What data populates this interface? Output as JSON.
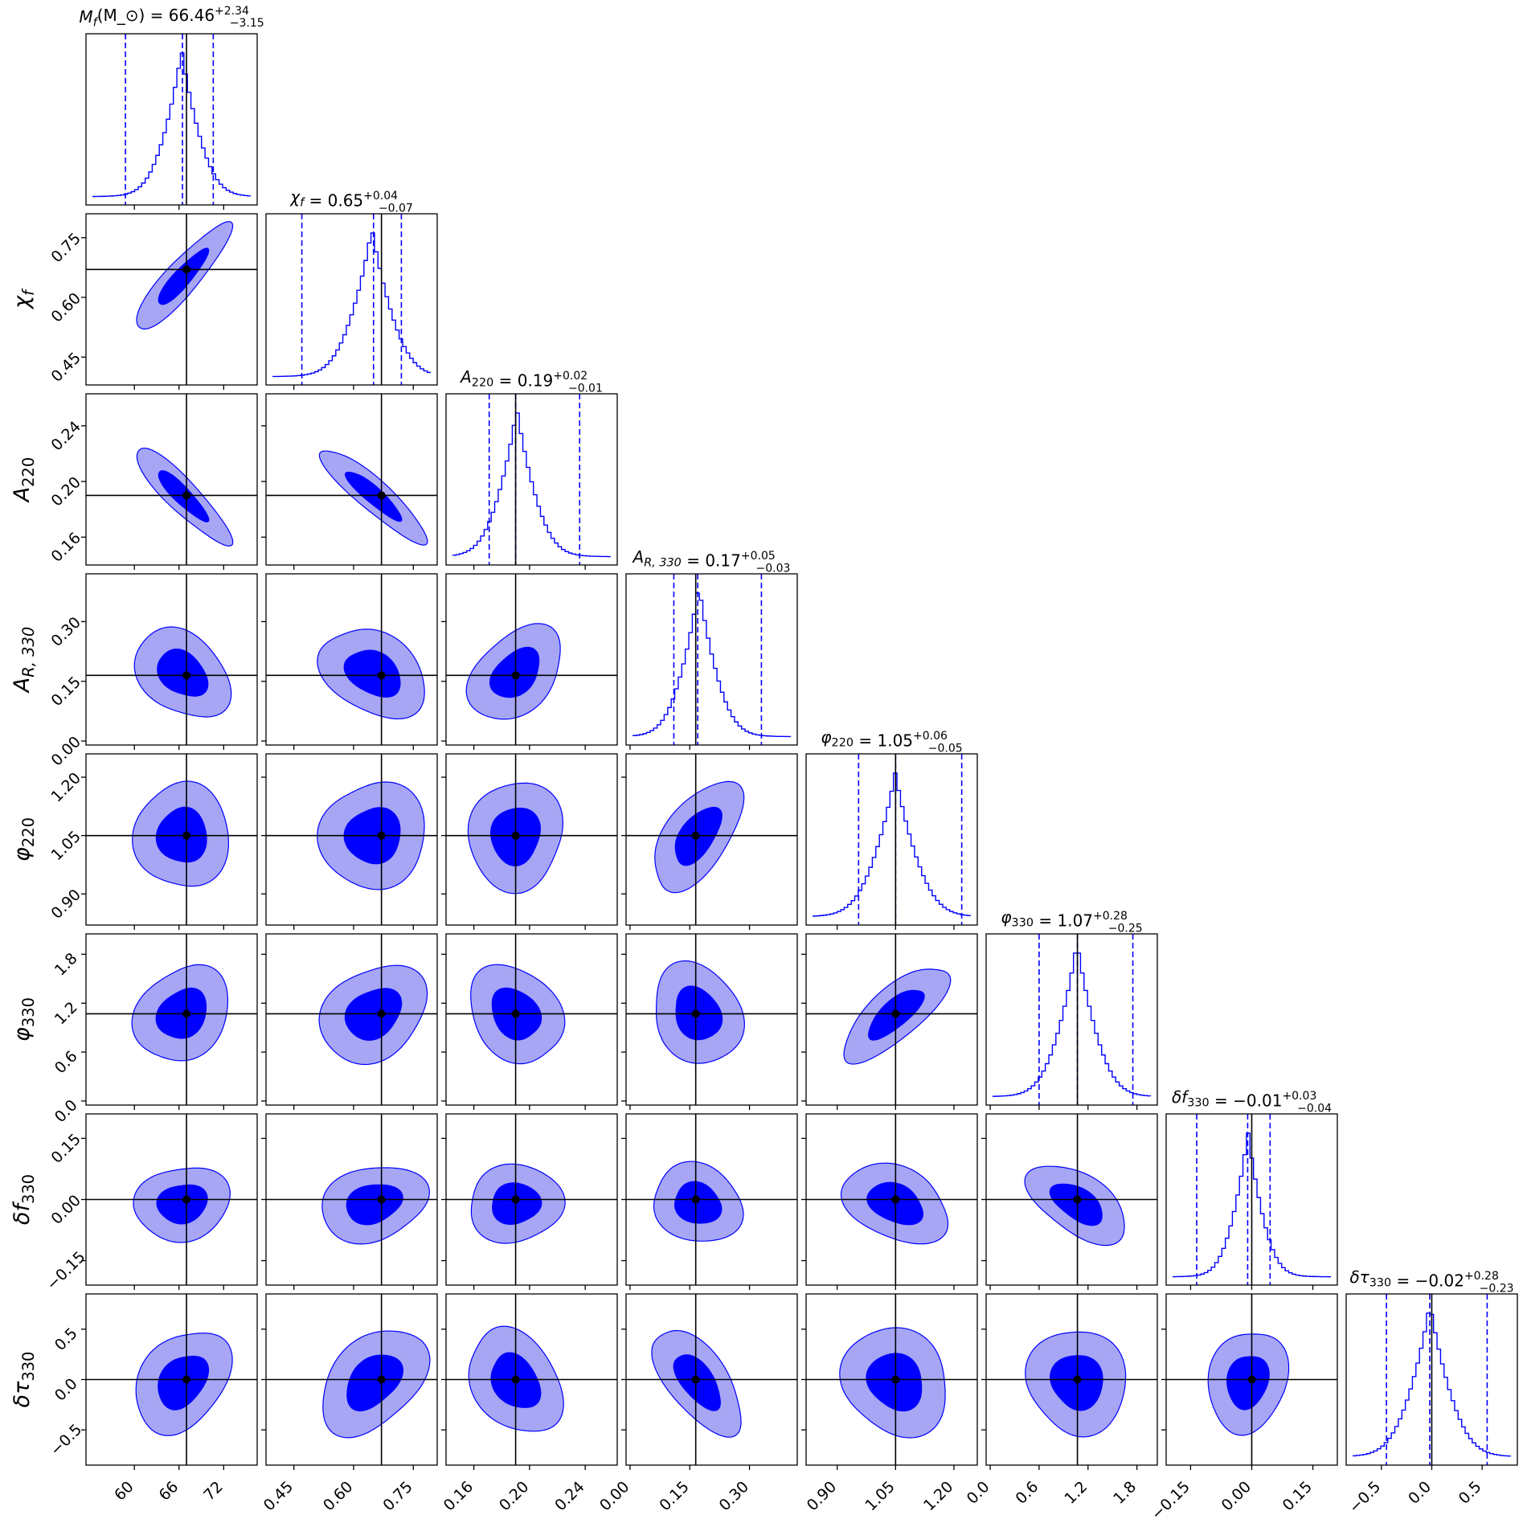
{
  "chart_data": {
    "type": "corner",
    "colors": {
      "hist": "#0000ff",
      "contour_inner": "#0000ff",
      "contour_outer": "#a6a6f5",
      "contour_edge": "#0000ff",
      "truth": "#000000",
      "quantile_line": "#0000ff"
    },
    "parameters": [
      {
        "key": "Mf",
        "label": "M_f(M_⊙)",
        "title_label": "M_f(M_⊙)",
        "median": 66.46,
        "plus": "+2.34",
        "minus": "−3.15",
        "q_low": 58.8,
        "q_high": 70.6,
        "truth": 67.0,
        "range": [
          53.5,
          76.5
        ],
        "ticks": [
          60,
          66,
          72
        ],
        "tick_labels": [
          "60",
          "66",
          "72"
        ]
      },
      {
        "key": "chi_f",
        "label": "χ_f",
        "title_label": "χ_f",
        "median": 0.65,
        "plus": "+0.04",
        "minus": "−0.07",
        "q_low": 0.47,
        "q_high": 0.72,
        "truth": 0.67,
        "range": [
          0.38,
          0.81
        ],
        "ticks": [
          0.45,
          0.6,
          0.75
        ],
        "tick_labels": [
          "0.45",
          "0.60",
          "0.75"
        ]
      },
      {
        "key": "A220",
        "label": "A_220",
        "title_label": "A_220",
        "median": 0.19,
        "plus": "+0.02",
        "minus": "−0.01",
        "q_low": 0.171,
        "q_high": 0.236,
        "truth": 0.19,
        "range": [
          0.14,
          0.263
        ],
        "ticks": [
          0.16,
          0.2,
          0.24
        ],
        "tick_labels": [
          "0.16",
          "0.20",
          "0.24"
        ]
      },
      {
        "key": "AR330",
        "label": "A_{R, 330}",
        "title_label": "A_{R, 330}",
        "median": 0.17,
        "plus": "+0.05",
        "minus": "−0.03",
        "q_low": 0.11,
        "q_high": 0.33,
        "truth": 0.165,
        "range": [
          -0.01,
          0.42
        ],
        "ticks": [
          0.0,
          0.15,
          0.3
        ],
        "tick_labels": [
          "0.00",
          "0.15",
          "0.30"
        ]
      },
      {
        "key": "phi220",
        "label": "φ_220",
        "title_label": "φ_220",
        "median": 1.05,
        "plus": "+0.06",
        "minus": "−0.05",
        "q_low": 0.955,
        "q_high": 1.22,
        "truth": 1.05,
        "range": [
          0.82,
          1.26
        ],
        "ticks": [
          0.9,
          1.05,
          1.2
        ],
        "tick_labels": [
          "0.90",
          "1.05",
          "1.20"
        ]
      },
      {
        "key": "phi330",
        "label": "φ_330",
        "title_label": "φ_330",
        "median": 1.07,
        "plus": "+0.28",
        "minus": "−0.25",
        "q_low": 0.6,
        "q_high": 1.75,
        "truth": 1.07,
        "range": [
          -0.05,
          2.05
        ],
        "ticks": [
          0.0,
          0.6,
          1.2,
          1.8
        ],
        "tick_labels": [
          "0.0",
          "0.6",
          "1.2",
          "1.8"
        ]
      },
      {
        "key": "df330",
        "label": "δf_330",
        "title_label": "δf_330",
        "median": -0.01,
        "plus": "+0.03",
        "minus": "−0.04",
        "q_low": -0.135,
        "q_high": 0.045,
        "truth": 0.0,
        "range": [
          -0.21,
          0.21
        ],
        "ticks": [
          -0.15,
          0.0,
          0.15
        ],
        "tick_labels": [
          "−0.15",
          "0.00",
          "0.15"
        ]
      },
      {
        "key": "dtau330",
        "label": "δτ_330",
        "title_label": "δτ_330",
        "median": -0.02,
        "plus": "+0.28",
        "minus": "−0.23",
        "q_low": -0.45,
        "q_high": 0.55,
        "truth": 0.0,
        "range": [
          -0.85,
          0.85
        ],
        "ticks": [
          -0.5,
          0.0,
          0.5
        ],
        "tick_labels": [
          "−0.5",
          "0.0",
          "0.5"
        ]
      }
    ],
    "correlations": [
      [
        0,
        0,
        0,
        0,
        0,
        0,
        0,
        0
      ],
      [
        0.88,
        0,
        0,
        0,
        0,
        0,
        0,
        0
      ],
      [
        -0.88,
        -0.9,
        0,
        0,
        0,
        0,
        0,
        0
      ],
      [
        -0.3,
        -0.35,
        0.35,
        0,
        0,
        0,
        0,
        0
      ],
      [
        0.0,
        0.0,
        0.0,
        0.6,
        0,
        0,
        0,
        0
      ],
      [
        0.2,
        0.2,
        -0.3,
        -0.2,
        0.78,
        0,
        0,
        0
      ],
      [
        0.1,
        0.15,
        0.0,
        -0.15,
        -0.3,
        -0.5,
        0,
        0
      ],
      [
        0.3,
        0.35,
        -0.35,
        -0.65,
        -0.1,
        0.0,
        0.15,
        0
      ]
    ]
  }
}
